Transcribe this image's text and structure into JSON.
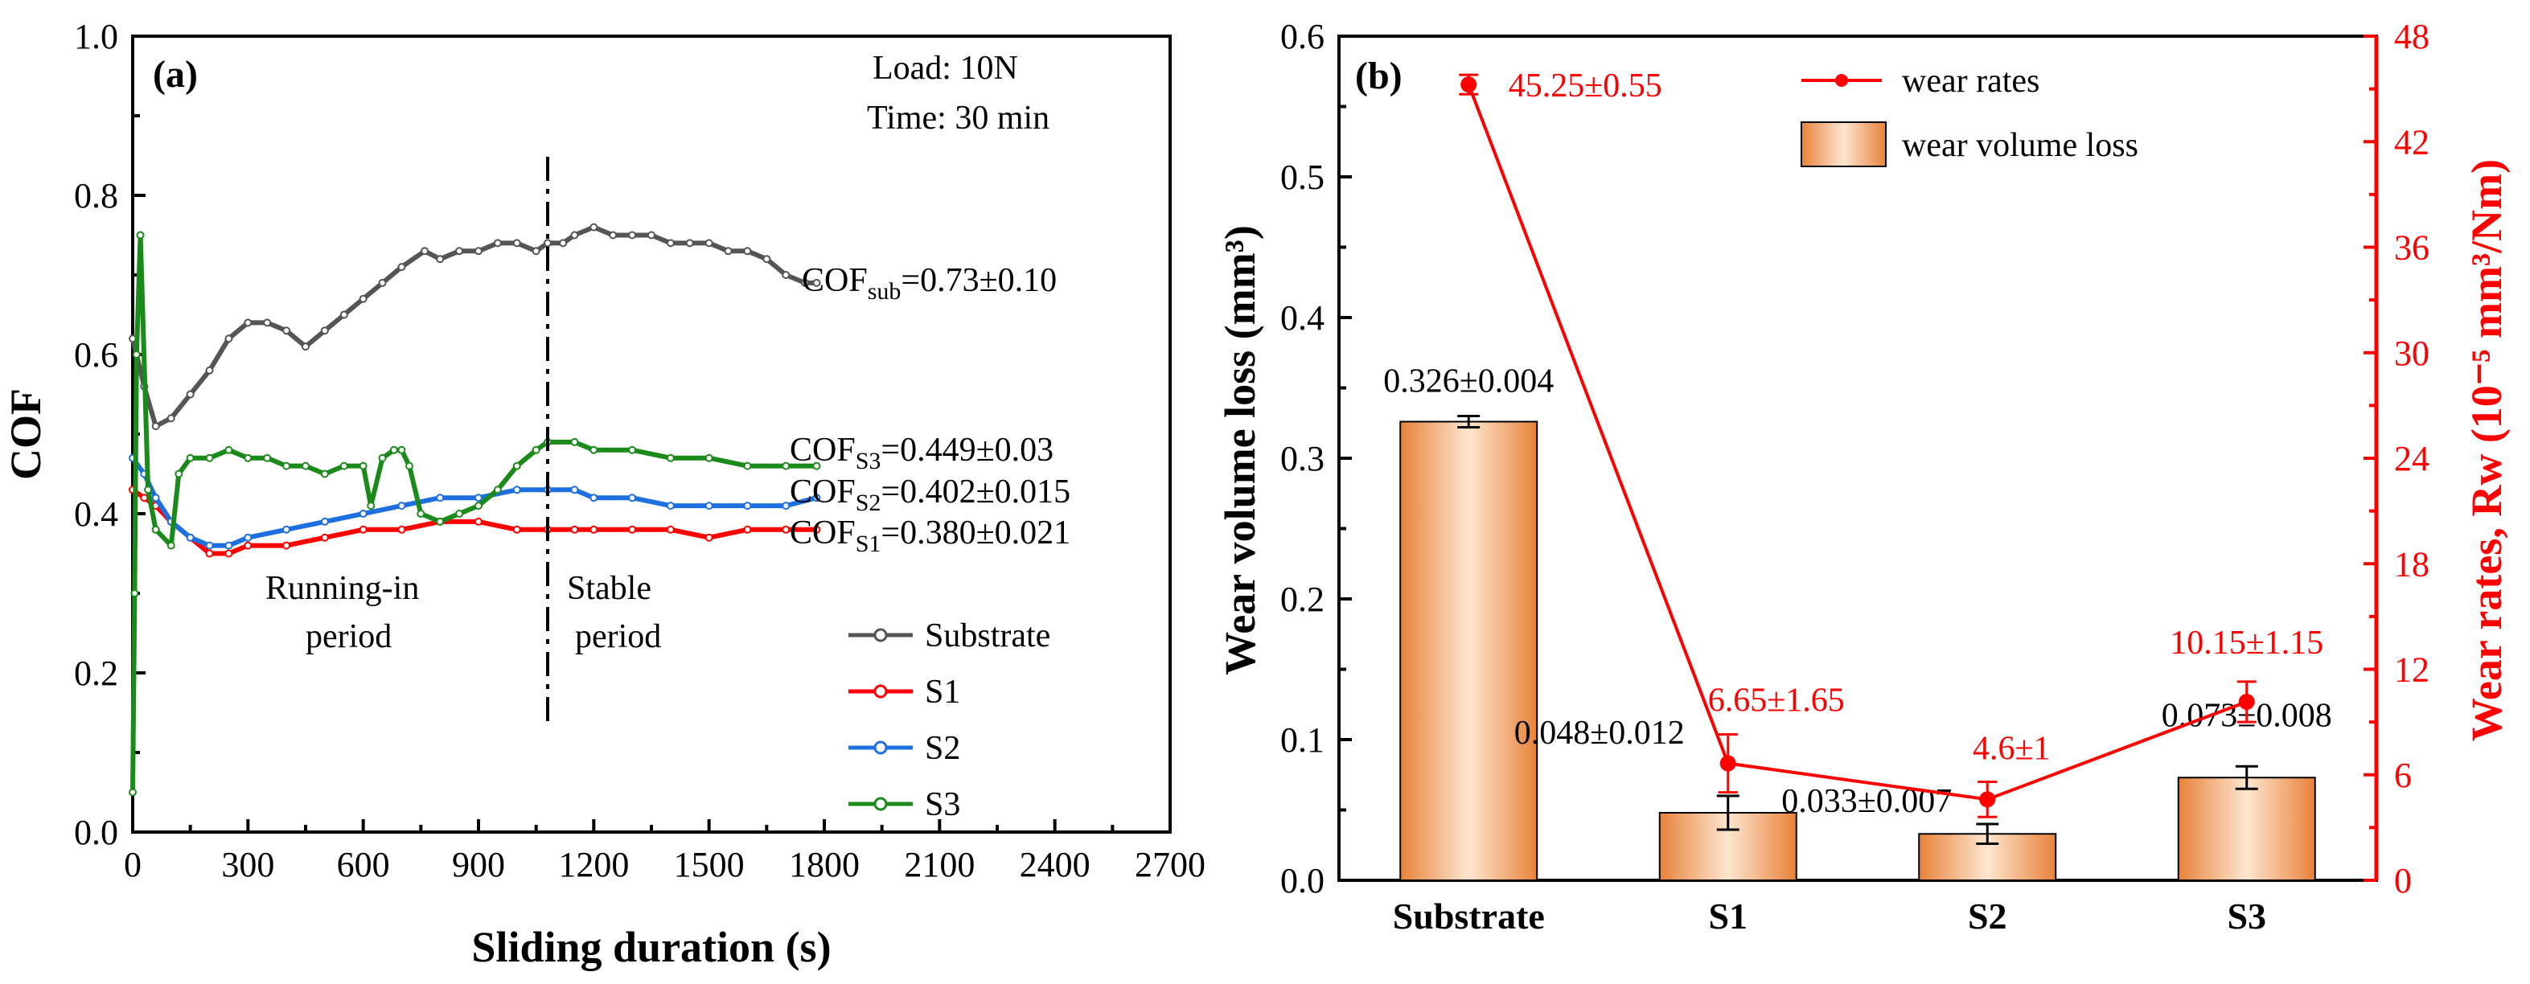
{
  "chart_data": [
    {
      "panel": "(a)",
      "type": "line",
      "xlabel": "Sliding duration (s)",
      "ylabel": "COF",
      "xlim": [
        0,
        2700
      ],
      "ylim": [
        0,
        1.0
      ],
      "xticks": [
        0,
        300,
        600,
        900,
        1200,
        1500,
        1800,
        2100,
        2400,
        2700
      ],
      "yticks": [
        0.0,
        0.2,
        0.4,
        0.6,
        0.8,
        1.0
      ],
      "xtick_labels": [
        "0",
        "300",
        "600",
        "900",
        "1200",
        "1500",
        "1800",
        "2100",
        "2400",
        "2700"
      ],
      "ytick_labels": [
        "0.0",
        "0.2",
        "0.4",
        "0.6",
        "0.8",
        "1.0"
      ],
      "conditions": {
        "load": "Load: 10N",
        "time": "Time: 30 min"
      },
      "divider_x": 1080,
      "period_labels": {
        "running_in_1": "Running-in",
        "running_in_2": "period",
        "stable_1": "Stable",
        "stable_2": "period"
      },
      "series": [
        {
          "name": "Substrate",
          "color": "#555555",
          "x": [
            0,
            30,
            60,
            100,
            150,
            200,
            250,
            300,
            350,
            400,
            450,
            500,
            550,
            600,
            650,
            700,
            760,
            800,
            850,
            900,
            950,
            1000,
            1050,
            1080,
            1120,
            1150,
            1200,
            1250,
            1300,
            1350,
            1400,
            1450,
            1500,
            1550,
            1600,
            1650,
            1700,
            1750,
            1780
          ],
          "y": [
            0.62,
            0.56,
            0.51,
            0.52,
            0.55,
            0.58,
            0.62,
            0.64,
            0.64,
            0.63,
            0.61,
            0.63,
            0.65,
            0.67,
            0.69,
            0.71,
            0.73,
            0.72,
            0.73,
            0.73,
            0.74,
            0.74,
            0.73,
            0.74,
            0.74,
            0.75,
            0.76,
            0.75,
            0.75,
            0.75,
            0.74,
            0.74,
            0.74,
            0.73,
            0.73,
            0.72,
            0.7,
            0.69,
            0.69
          ],
          "label_parts": {
            "prefix": "COF",
            "sub": "sub",
            "suffix": "=0.73±0.10"
          }
        },
        {
          "name": "S1",
          "color": "#ff0000",
          "x": [
            0,
            30,
            60,
            100,
            150,
            200,
            250,
            300,
            400,
            500,
            600,
            700,
            800,
            900,
            1000,
            1080,
            1150,
            1200,
            1300,
            1400,
            1500,
            1600,
            1700,
            1780
          ],
          "y": [
            0.43,
            0.42,
            0.41,
            0.39,
            0.37,
            0.35,
            0.35,
            0.36,
            0.36,
            0.37,
            0.38,
            0.38,
            0.39,
            0.39,
            0.38,
            0.38,
            0.38,
            0.38,
            0.38,
            0.38,
            0.37,
            0.38,
            0.38,
            0.38
          ],
          "label_parts": {
            "prefix": "COF",
            "sub": "S1",
            "suffix": "=0.380±0.021"
          }
        },
        {
          "name": "S2",
          "color": "#1e6fe0",
          "x": [
            0,
            30,
            60,
            100,
            150,
            200,
            250,
            300,
            400,
            500,
            600,
            700,
            800,
            900,
            1000,
            1080,
            1150,
            1200,
            1300,
            1400,
            1500,
            1600,
            1700,
            1780
          ],
          "y": [
            0.47,
            0.45,
            0.42,
            0.39,
            0.37,
            0.36,
            0.36,
            0.37,
            0.38,
            0.39,
            0.4,
            0.41,
            0.42,
            0.42,
            0.43,
            0.43,
            0.43,
            0.42,
            0.42,
            0.41,
            0.41,
            0.41,
            0.41,
            0.42
          ],
          "label_parts": {
            "prefix": "COF",
            "sub": "S2",
            "suffix": "=0.402±0.015"
          }
        },
        {
          "name": "S3",
          "color": "#1a8a1a",
          "x": [
            0,
            5,
            10,
            20,
            40,
            60,
            100,
            120,
            150,
            200,
            250,
            300,
            350,
            400,
            450,
            500,
            550,
            600,
            620,
            650,
            680,
            700,
            720,
            750,
            800,
            850,
            900,
            950,
            1000,
            1050,
            1080,
            1150,
            1200,
            1300,
            1400,
            1500,
            1600,
            1700,
            1780
          ],
          "y": [
            0.05,
            0.3,
            0.6,
            0.75,
            0.43,
            0.38,
            0.36,
            0.45,
            0.47,
            0.47,
            0.48,
            0.47,
            0.47,
            0.46,
            0.46,
            0.45,
            0.46,
            0.46,
            0.41,
            0.47,
            0.48,
            0.48,
            0.46,
            0.4,
            0.39,
            0.4,
            0.41,
            0.43,
            0.46,
            0.48,
            0.49,
            0.49,
            0.48,
            0.48,
            0.47,
            0.47,
            0.46,
            0.46,
            0.46
          ],
          "label_parts": {
            "prefix": "COF",
            "sub": "S3",
            "suffix": "=0.449±0.03"
          }
        }
      ],
      "legend": {
        "position": "bottom-right",
        "entries": [
          "Substrate",
          "S1",
          "S2",
          "S3"
        ]
      }
    },
    {
      "panel": "(b)",
      "type": "bar",
      "categories": [
        "Substrate",
        "S1",
        "S2",
        "S3"
      ],
      "ylabel": "Wear volume loss (mm³)",
      "ylim": [
        0,
        0.6
      ],
      "yticks": [
        0.0,
        0.1,
        0.2,
        0.3,
        0.4,
        0.5,
        0.6
      ],
      "ytick_labels": [
        "0.0",
        "0.1",
        "0.2",
        "0.3",
        "0.4",
        "0.5",
        "0.6"
      ],
      "bar_color": "#f0a060",
      "series": [
        {
          "name": "wear volume loss",
          "axis": "left",
          "values": [
            0.326,
            0.048,
            0.033,
            0.073
          ],
          "errors": [
            0.004,
            0.012,
            0.007,
            0.008
          ],
          "data_labels": [
            "0.326±0.004",
            "0.048±0.012",
            "0.033±0.007",
            "0.073±0.008"
          ]
        },
        {
          "name": "wear rates",
          "axis": "right",
          "color": "#ff0000",
          "values": [
            45.25,
            6.65,
            4.6,
            10.15
          ],
          "errors": [
            0.55,
            1.65,
            1.0,
            1.15
          ],
          "data_labels": [
            "45.25±0.55",
            "6.65±1.65",
            "4.6±1",
            "10.15±1.15"
          ]
        }
      ],
      "y2label": "Wear rates, Rw (10⁻⁵ mm³/Nm)",
      "y2lim": [
        0,
        48
      ],
      "y2ticks": [
        0,
        6,
        12,
        18,
        24,
        30,
        36,
        42,
        48
      ],
      "y2tick_labels": [
        "0",
        "6",
        "12",
        "18",
        "24",
        "30",
        "36",
        "42",
        "48"
      ],
      "legend": {
        "position": "top-right",
        "entries": [
          "wear rates",
          "wear volume loss"
        ]
      }
    }
  ]
}
